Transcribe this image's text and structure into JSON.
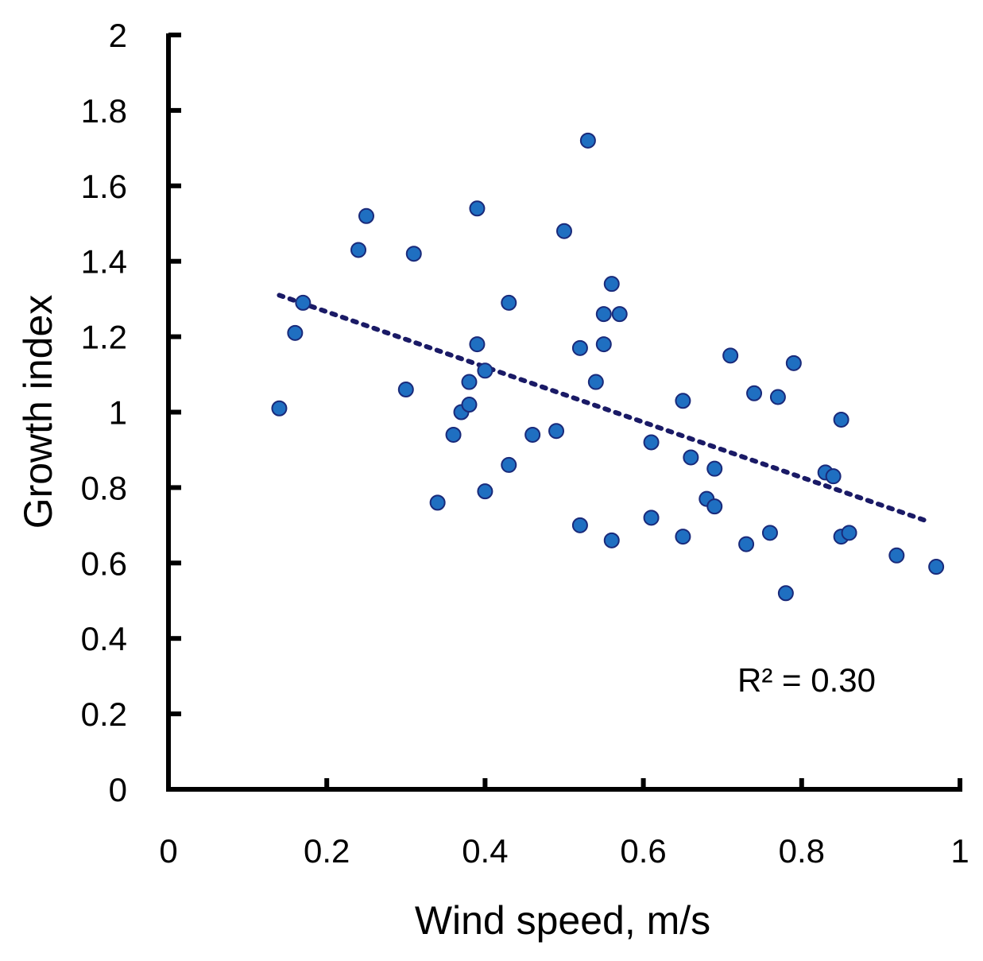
{
  "chart_data": {
    "type": "scatter",
    "xlabel": "Wind speed, m/s",
    "ylabel": "Growth index",
    "xlim": [
      0,
      1
    ],
    "ylim": [
      0,
      2
    ],
    "x_ticks": [
      "0",
      "0.2",
      "0.4",
      "0.6",
      "0.8",
      "1"
    ],
    "y_ticks": [
      "0",
      "0.2",
      "0.4",
      "0.6",
      "0.8",
      "1",
      "1.2",
      "1.4",
      "1.6",
      "1.8",
      "2"
    ],
    "grid": false,
    "annotation": "R² = 0.30",
    "trendline": {
      "style": "dotted",
      "x": [
        0.14,
        0.96
      ],
      "y": [
        1.31,
        0.71
      ]
    },
    "points": [
      {
        "x": 0.14,
        "y": 1.01
      },
      {
        "x": 0.16,
        "y": 1.21
      },
      {
        "x": 0.17,
        "y": 1.29
      },
      {
        "x": 0.24,
        "y": 1.43
      },
      {
        "x": 0.25,
        "y": 1.52
      },
      {
        "x": 0.31,
        "y": 1.42
      },
      {
        "x": 0.3,
        "y": 1.06
      },
      {
        "x": 0.34,
        "y": 0.76
      },
      {
        "x": 0.36,
        "y": 0.94
      },
      {
        "x": 0.37,
        "y": 1.0
      },
      {
        "x": 0.38,
        "y": 1.02
      },
      {
        "x": 0.38,
        "y": 1.08
      },
      {
        "x": 0.39,
        "y": 1.54
      },
      {
        "x": 0.39,
        "y": 1.18
      },
      {
        "x": 0.4,
        "y": 1.11
      },
      {
        "x": 0.4,
        "y": 0.79
      },
      {
        "x": 0.43,
        "y": 1.29
      },
      {
        "x": 0.43,
        "y": 0.86
      },
      {
        "x": 0.46,
        "y": 0.94
      },
      {
        "x": 0.49,
        "y": 0.95
      },
      {
        "x": 0.5,
        "y": 1.48
      },
      {
        "x": 0.52,
        "y": 1.17
      },
      {
        "x": 0.52,
        "y": 0.7
      },
      {
        "x": 0.53,
        "y": 1.72
      },
      {
        "x": 0.54,
        "y": 1.08
      },
      {
        "x": 0.55,
        "y": 1.26
      },
      {
        "x": 0.55,
        "y": 1.18
      },
      {
        "x": 0.56,
        "y": 1.34
      },
      {
        "x": 0.56,
        "y": 0.66
      },
      {
        "x": 0.57,
        "y": 1.26
      },
      {
        "x": 0.61,
        "y": 0.92
      },
      {
        "x": 0.61,
        "y": 0.72
      },
      {
        "x": 0.65,
        "y": 1.03
      },
      {
        "x": 0.65,
        "y": 0.67
      },
      {
        "x": 0.66,
        "y": 0.88
      },
      {
        "x": 0.68,
        "y": 0.77
      },
      {
        "x": 0.69,
        "y": 0.85
      },
      {
        "x": 0.69,
        "y": 0.75
      },
      {
        "x": 0.71,
        "y": 1.15
      },
      {
        "x": 0.73,
        "y": 0.65
      },
      {
        "x": 0.74,
        "y": 1.05
      },
      {
        "x": 0.76,
        "y": 0.68
      },
      {
        "x": 0.77,
        "y": 1.04
      },
      {
        "x": 0.78,
        "y": 0.52
      },
      {
        "x": 0.79,
        "y": 1.13
      },
      {
        "x": 0.83,
        "y": 0.84
      },
      {
        "x": 0.84,
        "y": 0.83
      },
      {
        "x": 0.85,
        "y": 0.98
      },
      {
        "x": 0.85,
        "y": 0.67
      },
      {
        "x": 0.86,
        "y": 0.68
      },
      {
        "x": 0.92,
        "y": 0.62
      },
      {
        "x": 0.97,
        "y": 0.59
      }
    ],
    "colors": {
      "point_fill": "#1f6fc1",
      "point_stroke": "#1a2a7a",
      "trendline": "#1a1a66",
      "axis": "#000000"
    }
  }
}
